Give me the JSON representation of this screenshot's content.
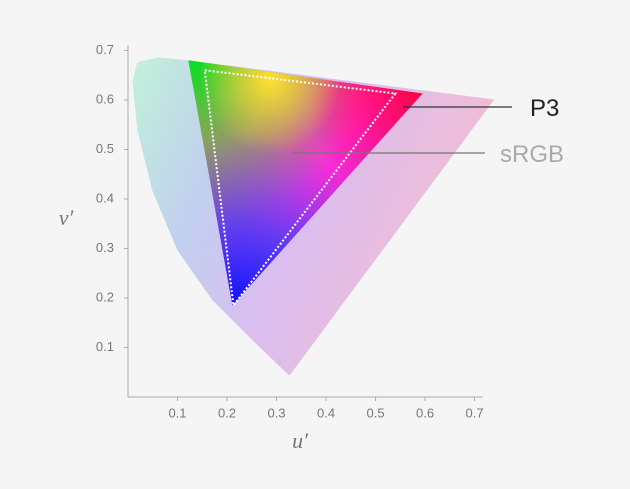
{
  "chart_data": {
    "type": "chromaticity",
    "xlabel": "u′",
    "ylabel": "v′",
    "xlim": [
      0,
      0.71
    ],
    "ylim": [
      0,
      0.71
    ],
    "xticks": [
      0.1,
      0.2,
      0.3,
      0.4,
      0.5,
      0.6,
      0.7
    ],
    "yticks": [
      0.1,
      0.2,
      0.3,
      0.4,
      0.5,
      0.6,
      0.7
    ],
    "series": [
      {
        "x": [
          0.326,
          0.252,
          0.171,
          0.1,
          0.049,
          0.019,
          0.009,
          0.019,
          0.06,
          0.122,
          0.74
        ],
        "y": [
          0.043,
          0.114,
          0.195,
          0.296,
          0.417,
          0.538,
          0.639,
          0.676,
          0.686,
          0.68,
          0.601
        ]
      },
      {
        "name": "P3",
        "x": [
          0.122,
          0.595,
          0.211
        ],
        "y": [
          0.68,
          0.613,
          0.185
        ]
      },
      {
        "name": "sRGB",
        "x": [
          0.155,
          0.54,
          0.213
        ],
        "y": [
          0.66,
          0.613,
          0.185
        ]
      }
    ]
  }
}
